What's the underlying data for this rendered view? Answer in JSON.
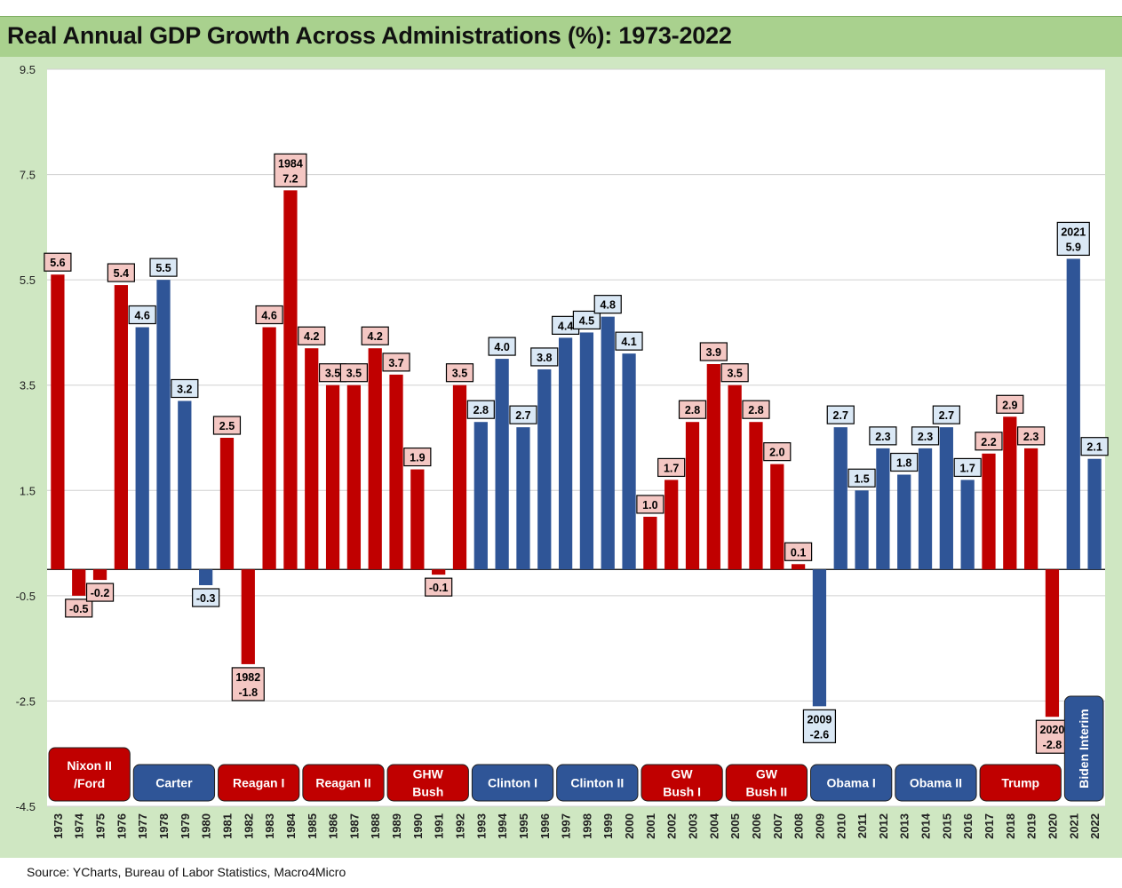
{
  "title": "Real Annual GDP Growth Across Administrations (%): 1973-2022",
  "source": "Source: YCharts, Bureau of Labor Statistics, Macro4Micro",
  "colors": {
    "republican": "#c00000",
    "democrat": "#2f5597",
    "rep_label_bg": "#f4c7c3",
    "dem_label_bg": "#dae8f5",
    "background": "#cfe7c2",
    "title_bar": "#a9d18e"
  },
  "chart_data": {
    "type": "bar",
    "title": "Real Annual GDP Growth Across Administrations (%): 1973-2022",
    "xlabel": "",
    "ylabel": "",
    "ylim": [
      -4.5,
      9.5
    ],
    "yticks": [
      "9.5",
      "7.5",
      "5.5",
      "3.5",
      "1.5",
      "-0.5",
      "-2.5",
      "-4.5"
    ],
    "ytick_values": [
      9.5,
      7.5,
      5.5,
      3.5,
      1.5,
      -0.5,
      -2.5,
      -4.5
    ],
    "grid": true,
    "legend": "none",
    "categories": [
      "1973",
      "1974",
      "1975",
      "1976",
      "1977",
      "1978",
      "1979",
      "1980",
      "1981",
      "1982",
      "1983",
      "1984",
      "1985",
      "1986",
      "1987",
      "1988",
      "1989",
      "1990",
      "1991",
      "1992",
      "1993",
      "1994",
      "1995",
      "1996",
      "1997",
      "1998",
      "1999",
      "2000",
      "2001",
      "2002",
      "2003",
      "2004",
      "2005",
      "2006",
      "2007",
      "2008",
      "2009",
      "2010",
      "2011",
      "2012",
      "2013",
      "2014",
      "2015",
      "2016",
      "2017",
      "2018",
      "2019",
      "2020",
      "2021",
      "2022"
    ],
    "values": [
      5.6,
      -0.5,
      -0.2,
      5.4,
      4.6,
      5.5,
      3.2,
      -0.3,
      2.5,
      -1.8,
      4.6,
      7.2,
      4.2,
      3.5,
      3.5,
      4.2,
      3.7,
      1.9,
      -0.1,
      3.5,
      2.8,
      4.0,
      2.7,
      3.8,
      4.4,
      4.5,
      4.8,
      4.1,
      1.0,
      1.7,
      2.8,
      3.9,
      3.5,
      2.8,
      2.0,
      0.1,
      -2.6,
      2.7,
      1.5,
      2.3,
      1.8,
      2.3,
      2.7,
      1.7,
      2.2,
      2.9,
      2.3,
      -2.8,
      5.9,
      2.1
    ],
    "labels": [
      "5.6",
      "-0.5",
      "-0.2",
      "5.4",
      "4.6",
      "5.5",
      "3.2",
      "-0.3",
      "2.5",
      "-1.8",
      "4.6",
      "7.2",
      "4.2",
      "3.5",
      "3.5",
      "4.2",
      "3.7",
      "1.9",
      "-0.1",
      "3.5",
      "2.8",
      "4.0",
      "2.7",
      "3.8",
      "4.4",
      "4.5",
      "4.8",
      "4.1",
      "1.0",
      "1.7",
      "2.8",
      "3.9",
      "3.5",
      "2.8",
      "2.0",
      "0.1",
      "-2.6",
      "2.7",
      "1.5",
      "2.3",
      "1.8",
      "2.3",
      "2.7",
      "1.7",
      "2.2",
      "2.9",
      "2.3",
      "-2.8",
      "5.9",
      "2.1"
    ],
    "party": [
      "R",
      "R",
      "R",
      "R",
      "D",
      "D",
      "D",
      "D",
      "R",
      "R",
      "R",
      "R",
      "R",
      "R",
      "R",
      "R",
      "R",
      "R",
      "R",
      "R",
      "D",
      "D",
      "D",
      "D",
      "D",
      "D",
      "D",
      "D",
      "R",
      "R",
      "R",
      "R",
      "R",
      "R",
      "R",
      "R",
      "D",
      "D",
      "D",
      "D",
      "D",
      "D",
      "D",
      "D",
      "R",
      "R",
      "R",
      "R",
      "D",
      "D"
    ],
    "year_callouts": {
      "1982": "1982",
      "1984": "1984",
      "2009": "2009",
      "2020": "2020",
      "2021": "2021"
    },
    "administrations": [
      {
        "name": "Nixon II /Ford",
        "lines": [
          "Nixon II",
          "/Ford"
        ],
        "party": "R",
        "start": 0,
        "end": 3
      },
      {
        "name": "Carter",
        "lines": [
          "Carter"
        ],
        "party": "D",
        "start": 4,
        "end": 7
      },
      {
        "name": "Reagan I",
        "lines": [
          "Reagan I"
        ],
        "party": "R",
        "start": 8,
        "end": 11
      },
      {
        "name": "Reagan II",
        "lines": [
          "Reagan II"
        ],
        "party": "R",
        "start": 12,
        "end": 15
      },
      {
        "name": "GHW Bush",
        "lines": [
          "GHW",
          "Bush"
        ],
        "party": "R",
        "start": 16,
        "end": 19
      },
      {
        "name": "Clinton I",
        "lines": [
          "Clinton I"
        ],
        "party": "D",
        "start": 20,
        "end": 23
      },
      {
        "name": "Clinton II",
        "lines": [
          "Clinton II"
        ],
        "party": "D",
        "start": 24,
        "end": 27
      },
      {
        "name": "GW Bush I",
        "lines": [
          "GW",
          "Bush I"
        ],
        "party": "R",
        "start": 28,
        "end": 31
      },
      {
        "name": "GW Bush II",
        "lines": [
          "GW",
          "Bush II"
        ],
        "party": "R",
        "start": 32,
        "end": 35
      },
      {
        "name": "Obama I",
        "lines": [
          "Obama I"
        ],
        "party": "D",
        "start": 36,
        "end": 39
      },
      {
        "name": "Obama II",
        "lines": [
          "Obama II"
        ],
        "party": "D",
        "start": 40,
        "end": 43
      },
      {
        "name": "Trump",
        "lines": [
          "Trump"
        ],
        "party": "R",
        "start": 44,
        "end": 47
      },
      {
        "name": "Biden Interim",
        "lines": [
          "Biden Interim"
        ],
        "party": "D",
        "start": 48,
        "end": 49,
        "vertical": true
      }
    ]
  }
}
